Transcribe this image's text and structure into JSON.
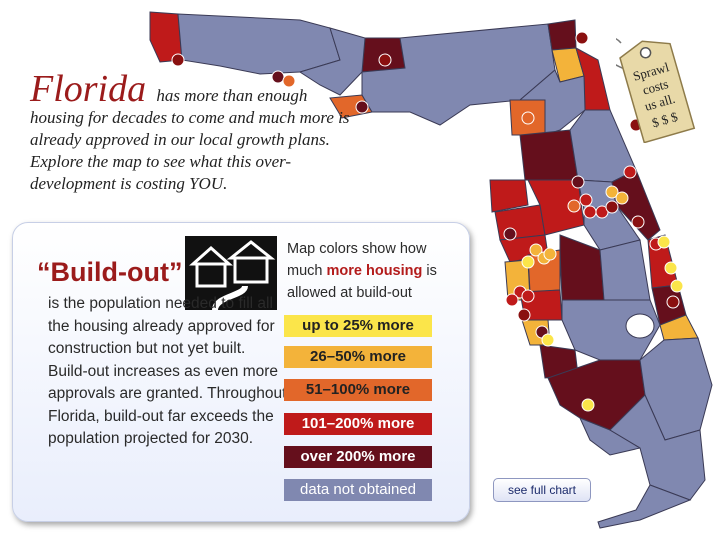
{
  "intro": {
    "headline": "Florida",
    "text": "has more than enough housing for decades to come and much more is already approved in our local growth plans. Explore the map to see what this over-development is costing YOU."
  },
  "tag": {
    "lines": [
      "Sprawl",
      "costs",
      "us all.",
      "$ $ $"
    ]
  },
  "buildout": {
    "title": "“Build-out”",
    "text": "is the population needed to fill all the housing already approved for construction but not yet built. Build-out increases as even more approvals are granted. Throughout Florida, build-out far exceeds the population projected for 2030."
  },
  "legend": {
    "intro_before": "Map colors show how much ",
    "intro_highlight": "more housing",
    "intro_after": " is allowed at build-out",
    "items": [
      {
        "label": "up to 25% more",
        "color": "#fbe54a"
      },
      {
        "label": "26–50% more",
        "color": "#f3b33a"
      },
      {
        "label": "51–100% more",
        "color": "#e2672a"
      },
      {
        "label": "101–200% more",
        "color": "#bf1a1a"
      },
      {
        "label": "over 200% more",
        "color": "#650f1c"
      },
      {
        "label": "data not obtained",
        "color": "#8088b0"
      }
    ]
  },
  "buttons": {
    "full_chart": "see full chart"
  }
}
